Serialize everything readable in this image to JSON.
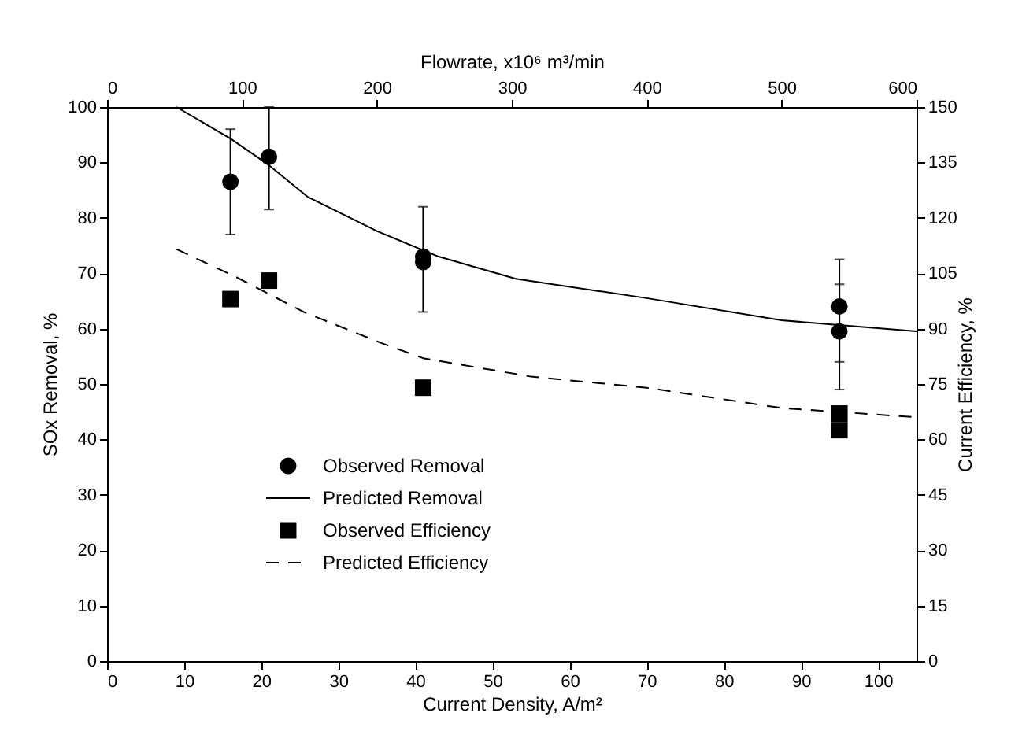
{
  "chart_data": {
    "type": "scatter",
    "xlabel": "Current Density, A/m²",
    "x2label": "Flowrate, x10⁶ m³/min",
    "ylabel": "SOx Removal, %",
    "y2label": "Current Efficiency, %",
    "xlim": [
      0,
      105
    ],
    "xticks": [
      0,
      10,
      20,
      30,
      40,
      50,
      60,
      70,
      80,
      90,
      100
    ],
    "x2lim": [
      0,
      600
    ],
    "x2ticks": [
      0,
      100,
      200,
      300,
      400,
      500,
      600
    ],
    "ylim": [
      0,
      100
    ],
    "yticks": [
      0,
      10,
      20,
      30,
      40,
      50,
      60,
      70,
      80,
      90,
      100
    ],
    "y2lim": [
      0,
      150
    ],
    "y2ticks": [
      0,
      15,
      30,
      45,
      60,
      75,
      90,
      105,
      120,
      135,
      150
    ],
    "grid": false,
    "legend": "left",
    "series": [
      {
        "name": "Observed Removal",
        "type": "scatter",
        "marker": "circle",
        "color": "#000000",
        "x": [
          16,
          21,
          41,
          41,
          95,
          95
        ],
        "values": [
          86.5,
          91,
          72,
          73,
          64,
          59.5
        ],
        "errors": [
          [
            77,
            96
          ],
          [
            81.5,
            100
          ],
          [
            63,
            82
          ],
          null,
          [
            54,
            72.5
          ],
          [
            49,
            68
          ]
        ]
      },
      {
        "name": "Predicted Removal",
        "type": "line",
        "marker": "none",
        "line_style": "solid",
        "color": "#000000",
        "x": [
          9,
          16,
          21,
          26,
          35,
          43,
          53,
          70,
          87.5,
          105
        ],
        "values": [
          100,
          94.3,
          89.5,
          83.8,
          77.6,
          73,
          69,
          65.5,
          61.5,
          59.5
        ]
      },
      {
        "name": "Observed Efficiency",
        "type": "scatter",
        "marker": "square",
        "axis": "y2",
        "color": "#000000",
        "x": [
          16,
          21,
          41,
          95,
          95
        ],
        "values": [
          98,
          103,
          74,
          67,
          62.5
        ]
      },
      {
        "name": "Predicted Efficiency",
        "type": "line",
        "marker": "none",
        "line_style": "dashed",
        "axis": "y2",
        "color": "#000000",
        "x": [
          9,
          16.7,
          25.5,
          35.7,
          41,
          55,
          70,
          87.5,
          105
        ],
        "values": [
          111.5,
          104,
          94.5,
          86,
          82,
          77,
          74,
          68.5,
          66
        ]
      }
    ]
  }
}
